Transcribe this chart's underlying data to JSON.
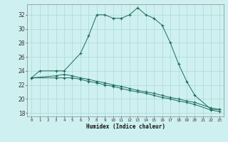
{
  "title": "",
  "xlabel": "Humidex (Indice chaleur)",
  "bg_color": "#cff0f0",
  "grid_color": "#aad8d8",
  "line_color": "#1a6b5a",
  "xlim": [
    -0.5,
    23.5
  ],
  "ylim": [
    17.5,
    33.5
  ],
  "yticks": [
    18,
    20,
    22,
    24,
    26,
    28,
    30,
    32
  ],
  "xticks": [
    0,
    1,
    2,
    3,
    4,
    5,
    6,
    7,
    8,
    9,
    10,
    11,
    12,
    13,
    14,
    15,
    16,
    17,
    18,
    19,
    20,
    21,
    22,
    23
  ],
  "line1_x": [
    0,
    1,
    3,
    4,
    6,
    7,
    8,
    9,
    10,
    11,
    12,
    13,
    14,
    15,
    16,
    17,
    18,
    19,
    20,
    22,
    23
  ],
  "line1_y": [
    23.0,
    24.0,
    24.0,
    24.0,
    26.5,
    29.0,
    32.0,
    32.0,
    31.5,
    31.5,
    32.0,
    33.0,
    32.0,
    31.5,
    30.5,
    28.0,
    25.0,
    22.5,
    20.5,
    18.5,
    18.5
  ],
  "line2_x": [
    0,
    3,
    4,
    5,
    6,
    7,
    8,
    9,
    10,
    11,
    12,
    13,
    14,
    15,
    16,
    17,
    18,
    19,
    20,
    22,
    23
  ],
  "line2_y": [
    23.0,
    23.0,
    23.0,
    23.0,
    22.8,
    22.5,
    22.3,
    22.0,
    21.8,
    21.5,
    21.2,
    21.0,
    20.8,
    20.5,
    20.2,
    20.0,
    19.7,
    19.5,
    19.2,
    18.4,
    18.2
  ],
  "line3_x": [
    0,
    3,
    4,
    5,
    6,
    7,
    8,
    9,
    10,
    11,
    12,
    13,
    14,
    15,
    16,
    17,
    18,
    19,
    20,
    22,
    23
  ],
  "line3_y": [
    23.0,
    23.3,
    23.5,
    23.3,
    23.0,
    22.8,
    22.5,
    22.3,
    22.0,
    21.8,
    21.5,
    21.2,
    21.0,
    20.8,
    20.5,
    20.2,
    20.0,
    19.7,
    19.5,
    18.7,
    18.5
  ]
}
